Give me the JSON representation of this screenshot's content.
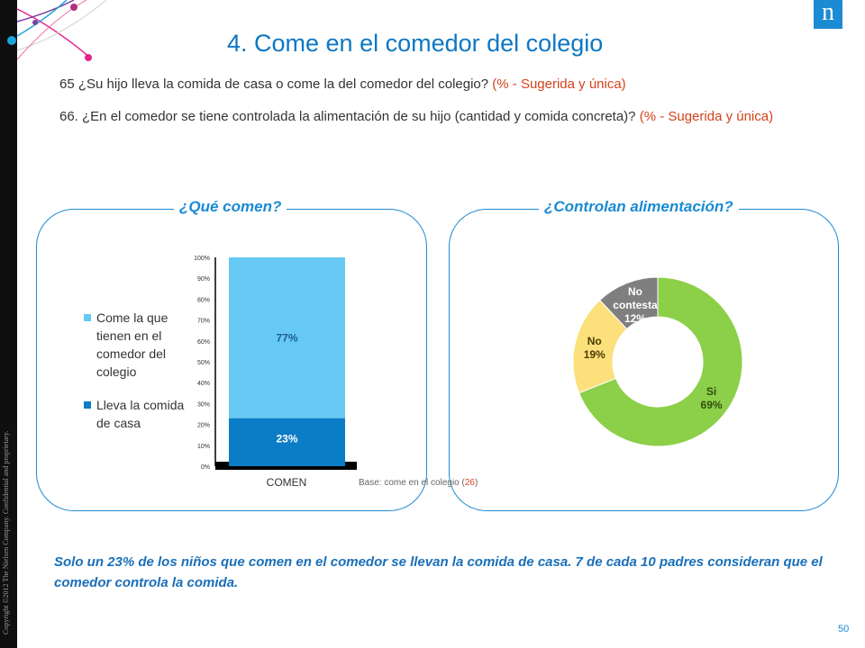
{
  "slide": {
    "title": "4. Come en el comedor del colegio",
    "page_number": "50",
    "copyright": "Copyright ©2012 The Nielsen Company. Confidential and proprietary.",
    "logo_letter": "n"
  },
  "questions": [
    {
      "text": "65 ¿Su hijo lleva la comida de casa o come la del comedor del colegio?",
      "note": "(% - Sugerida y única)"
    },
    {
      "text": "66. ¿En el comedor se tiene controlada la alimentación de su hijo (cantidad y comida concreta)?",
      "note": "(% - Sugerida y única)"
    }
  ],
  "panels": {
    "left_title": "¿Qué comen?",
    "right_title": "¿Controlan alimentación?"
  },
  "base_note": {
    "text": "Base: come en el colegio (",
    "count": "26",
    "close": ")"
  },
  "colors": {
    "accent": "#1b8bd3",
    "title": "#0d77c4",
    "note": "#d4421a",
    "comedor": "#66c9f3",
    "casa": "#0b7cc6",
    "si": "#8ccf48",
    "no": "#fbe07c",
    "no_contesta": "#7f7f7f"
  },
  "chart_data": [
    {
      "type": "bar",
      "stacked": true,
      "categories": [
        "COMEN"
      ],
      "series": [
        {
          "name": "Lleva la comida de casa",
          "values": [
            23
          ],
          "label": "23%"
        },
        {
          "name": "Come la que tienen en el comedor del colegio",
          "values": [
            77
          ],
          "label": "77%"
        }
      ],
      "legend": [
        "Come la que tienen en el comedor del colegio",
        "Lleva la comida de casa"
      ],
      "legend_position": "left",
      "ylim": [
        0,
        100
      ],
      "y_ticks": [
        "0%",
        "10%",
        "20%",
        "30%",
        "40%",
        "50%",
        "60%",
        "70%",
        "80%",
        "90%",
        "100%"
      ]
    },
    {
      "type": "pie",
      "donut": true,
      "slices": [
        {
          "label": "Si",
          "value": 69,
          "text": "69%"
        },
        {
          "label": "No",
          "value": 19,
          "text": "19%"
        },
        {
          "label": "No contesta",
          "value": 12,
          "text": "12%"
        }
      ]
    }
  ],
  "conclusion": "Solo un 23% de los niños que comen en el comedor se llevan la comida de casa. 7 de cada 10 padres consideran que el comedor controla la comida."
}
